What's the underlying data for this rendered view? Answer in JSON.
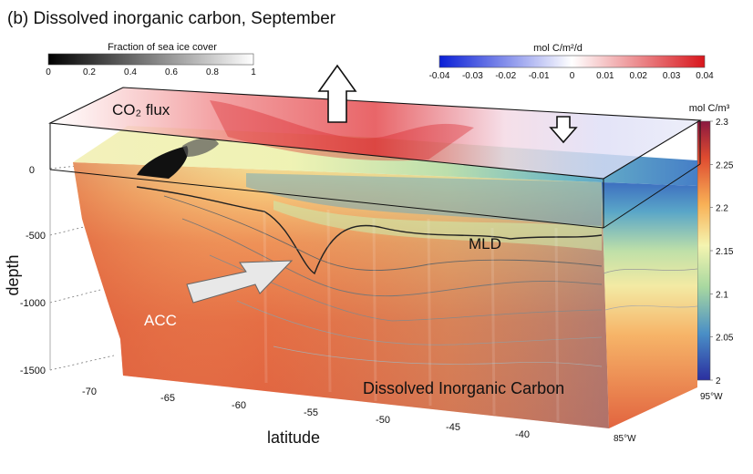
{
  "title": "(b) Dissolved inorganic carbon, September",
  "ice_bar": {
    "label": "Fraction of sea ice cover",
    "ticks": [
      "0",
      "0.2",
      "0.4",
      "0.6",
      "0.8",
      "1"
    ],
    "colors": [
      "#000000",
      "#ffffff"
    ]
  },
  "flux_bar": {
    "unit": "mol C/m²/d",
    "ticks": [
      "-0.04",
      "-0.03",
      "-0.02",
      "-0.01",
      "0",
      "0.01",
      "0.02",
      "0.03",
      "0.04"
    ],
    "colors": [
      "#0a1fd6",
      "#ffffff",
      "#d8161c"
    ]
  },
  "dic_bar": {
    "unit": "mol C/m³",
    "ticks": [
      "2.3",
      "2.25",
      "2.2",
      "2.15",
      "2.1",
      "2.05",
      "2"
    ],
    "colors": [
      "#2b2fa0",
      "#4a8fc6",
      "#a8d8a0",
      "#f4f4b0",
      "#f8b056",
      "#de4b30",
      "#8b1840"
    ]
  },
  "labels": {
    "co2_flux": "CO₂ flux",
    "mld": "MLD",
    "acc": "ACC",
    "dic": "Dissolved Inorganic Carbon"
  },
  "axes": {
    "depth_label": "depth",
    "depth_ticks": [
      "0",
      "-500",
      "-1000",
      "-1500"
    ],
    "latitude_label": "latitude",
    "latitude_ticks": [
      "-70",
      "-65",
      "-60",
      "-55",
      "-50",
      "-45",
      "-40"
    ],
    "lon_east": "95°W",
    "lon_west": "85°W"
  }
}
